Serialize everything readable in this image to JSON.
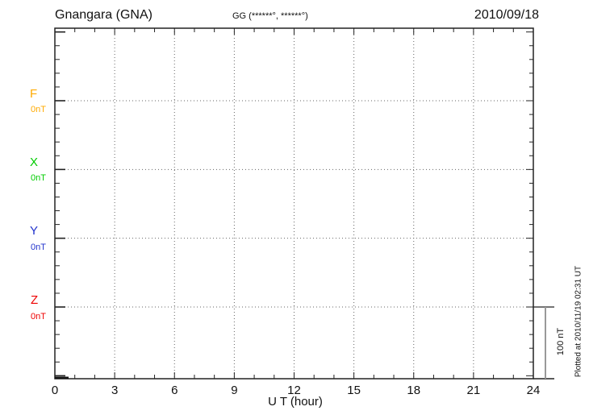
{
  "header": {
    "title": "Gnangara (GNA)",
    "coordinates": "GG (******°, ******°)",
    "date": "2010/09/18"
  },
  "channels": [
    {
      "label": "F",
      "value": "0nT",
      "color": "#FFAA00"
    },
    {
      "label": "X",
      "value": "0nT",
      "color": "#00CC00"
    },
    {
      "label": "Y",
      "value": "0nT",
      "color": "#2233CC"
    },
    {
      "label": "Z",
      "value": "0nT",
      "color": "#EE0000"
    }
  ],
  "x_axis": {
    "label": "U T (hour)",
    "tick_labels": [
      "0",
      "3",
      "6",
      "9",
      "12",
      "15",
      "18",
      "21",
      "24"
    ]
  },
  "scale_bar": {
    "label": "100 nT"
  },
  "footer": {
    "plotted_note": "Plotted at 2010/11/19 02:31 UT"
  },
  "chart_data": {
    "type": "line",
    "title": "Gnangara (GNA)",
    "subtitle": "GG (******°, ******°)",
    "date": "2010/09/18",
    "xlabel": "U T (hour)",
    "x_range_hours": [
      0,
      24
    ],
    "x_major_ticks": [
      0,
      3,
      6,
      9,
      12,
      15,
      18,
      21,
      24
    ],
    "x_minor_step_hours": 1,
    "y_layout": {
      "minor_divisions_per_channel": 5,
      "scale_bar_nT": 100,
      "nT_per_minor_division": 20
    },
    "series": [
      {
        "name": "F",
        "color": "#FFAA00",
        "baseline_nT": 0,
        "points": []
      },
      {
        "name": "X",
        "color": "#00CC00",
        "baseline_nT": 0,
        "points": []
      },
      {
        "name": "Y",
        "color": "#2233CC",
        "baseline_nT": 0,
        "points": []
      },
      {
        "name": "Z",
        "color": "#EE0000",
        "baseline_nT": 0,
        "points": []
      }
    ],
    "grid": "dotted horizontal lines at each channel baseline; dotted vertical lines every 3 hours",
    "legend_position": "left margin (channel letters with baseline values)",
    "note": "No data traces visible except a short flat segment along the bottom axis near 0 UT; station coordinates masked with asterisks"
  }
}
